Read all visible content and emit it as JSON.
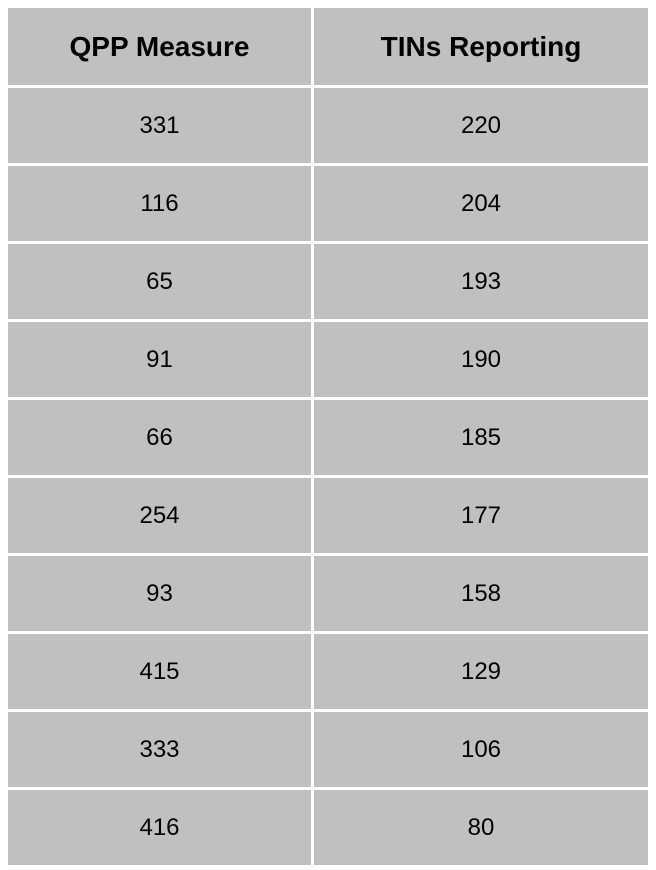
{
  "table": {
    "headers": [
      "QPP Measure",
      "TINs Reporting"
    ],
    "rows": [
      [
        "331",
        "220"
      ],
      [
        "116",
        "204"
      ],
      [
        "65",
        "193"
      ],
      [
        "91",
        "190"
      ],
      [
        "66",
        "185"
      ],
      [
        "254",
        "177"
      ],
      [
        "93",
        "158"
      ],
      [
        "415",
        "129"
      ],
      [
        "333",
        "106"
      ],
      [
        "416",
        "80"
      ]
    ]
  }
}
